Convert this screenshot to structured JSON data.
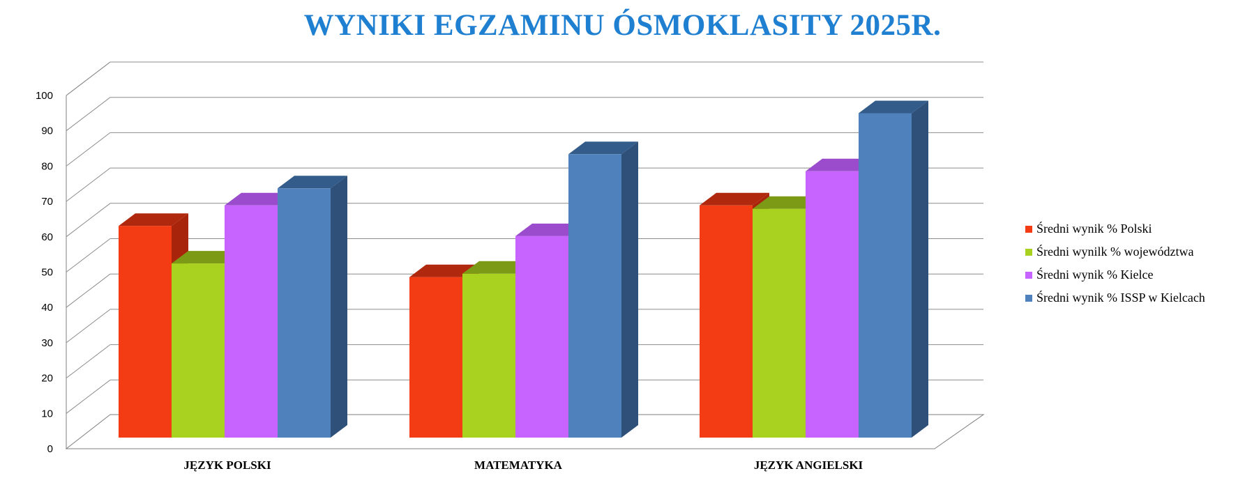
{
  "chart_data": {
    "type": "bar",
    "title": "WYNIKI EGZAMINU ÓSMOKLASITY 2025R.",
    "categories": [
      "JĘZYK POLSKI",
      "MATEMATYKA",
      "JĘZYK ANGIELSKI"
    ],
    "series": [
      {
        "name": "Średni wynik % Polski",
        "values": [
          62,
          47,
          68
        ],
        "color": "#f33b14",
        "top": "#b0280d",
        "side": "#a8250b"
      },
      {
        "name": "Średni wynilk % województwa",
        "values": [
          51,
          48,
          67
        ],
        "color": "#a8d120",
        "top": "#7d9a16",
        "side": "#6f8a12"
      },
      {
        "name": "Średni wynik % Kielce",
        "values": [
          68,
          59,
          78
        ],
        "color": "#c764ff",
        "top": "#9b4ccc",
        "side": "#8f45bd"
      },
      {
        "name": "Średni wynik % ISSP w Kielcach",
        "values": [
          73,
          83,
          95
        ],
        "color": "#4f81bd",
        "top": "#345c8a",
        "side": "#2f5079"
      }
    ],
    "ylim": [
      0,
      100
    ],
    "yticks": [
      "0",
      "10",
      "20",
      "30",
      "40",
      "50",
      "60",
      "70",
      "80",
      "90",
      "100"
    ],
    "grid": true,
    "legend_position": "right",
    "three_d": true
  }
}
